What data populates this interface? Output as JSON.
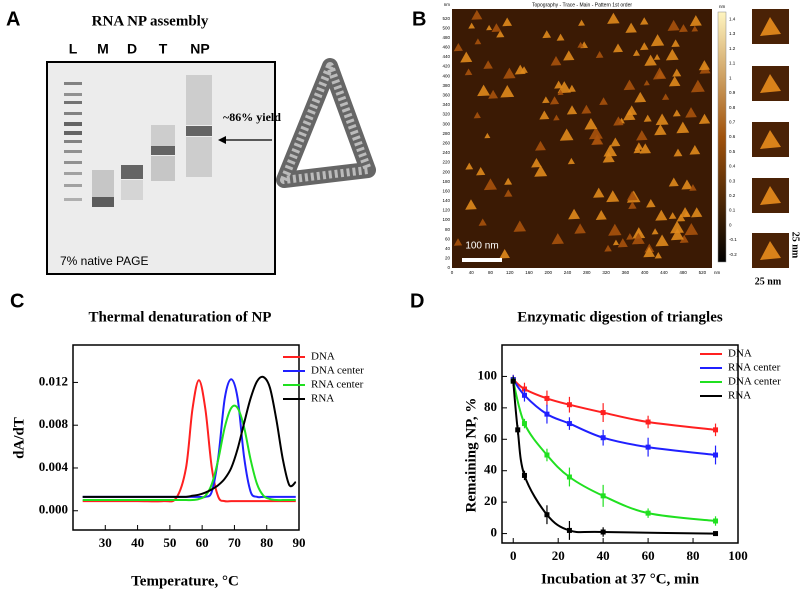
{
  "panel_a": {
    "label": "A",
    "title": "RNA NP assembly",
    "lanes": [
      "L",
      "M",
      "D",
      "T",
      "NP"
    ],
    "annotation": "~86% yield",
    "gel_note": "7% native PAGE"
  },
  "panel_b": {
    "label": "B",
    "header": "Topography - Trace - Main - Pattern 1st order",
    "x_unit": "nm",
    "y_unit": "nm",
    "colorbar_unit": "nm",
    "xlim": [
      0,
      540
    ],
    "ylim": [
      0,
      540
    ],
    "x_ticks": [
      0,
      40,
      80,
      120,
      160,
      200,
      240,
      280,
      320,
      360,
      400,
      440,
      480,
      520
    ],
    "y_ticks": [
      0,
      20,
      40,
      60,
      80,
      100,
      120,
      140,
      160,
      180,
      200,
      220,
      240,
      260,
      280,
      300,
      320,
      340,
      360,
      380,
      400,
      420,
      440,
      460,
      480,
      500,
      520
    ],
    "colorbar_lim": [
      -0.25,
      1.45
    ],
    "colorbar_ticks": [
      1.4,
      1.3,
      1.2,
      1.1,
      1,
      0.9,
      0.8,
      0.7,
      0.6,
      0.5,
      0.4,
      0.3,
      0.2,
      0.1,
      0,
      -0.1,
      -0.2
    ],
    "scale_bar": "100 nm",
    "inset_width": "25 nm",
    "inset_height": "25 nm"
  },
  "chart_data": [
    {
      "type": "line",
      "label": "C",
      "title": "Thermal denaturation of NP",
      "x_label": "Temperature, °C",
      "y_label": "dA/dT",
      "x": [
        23,
        30,
        40,
        48,
        52,
        55,
        57,
        59,
        61,
        63,
        65,
        67,
        69,
        71,
        73,
        75,
        77,
        79,
        81,
        83,
        85,
        87,
        89
      ],
      "xlim": [
        20,
        90
      ],
      "ylim": [
        -0.0018,
        0.0155
      ],
      "xticks": [
        30,
        40,
        50,
        60,
        70,
        80,
        90
      ],
      "yticks": [
        {
          "value": 0,
          "label": "0.000"
        },
        {
          "value": 0.004,
          "label": "0.004"
        },
        {
          "value": 0.008,
          "label": "0.008"
        },
        {
          "value": 0.012,
          "label": "0.012"
        }
      ],
      "legend": "upper right",
      "series": [
        {
          "name": "DNA",
          "color": "#ff2020",
          "values": [
            0.0009,
            0.0009,
            0.0009,
            0.0009,
            0.0012,
            0.004,
            0.0095,
            0.0122,
            0.0095,
            0.004,
            0.0013,
            0.0009,
            0.0009,
            0.0009,
            0.0009,
            0.0009,
            0.0009,
            0.0009,
            0.0009,
            0.0009,
            0.0009,
            0.0009,
            0.0009
          ]
        },
        {
          "name": "DNA center",
          "color": "#2020ff",
          "values": [
            0.0013,
            0.0013,
            0.0013,
            0.0013,
            0.0013,
            0.0013,
            0.0013,
            0.0013,
            0.0013,
            0.0018,
            0.005,
            0.0105,
            0.0123,
            0.0105,
            0.005,
            0.0018,
            0.0013,
            0.0013,
            0.0013,
            0.0013,
            0.0013,
            0.0013,
            0.0013
          ]
        },
        {
          "name": "RNA center",
          "color": "#20e020",
          "values": [
            0.001,
            0.001,
            0.001,
            0.001,
            0.001,
            0.001,
            0.001,
            0.0011,
            0.0014,
            0.0025,
            0.0048,
            0.0078,
            0.0096,
            0.0096,
            0.0078,
            0.0048,
            0.0025,
            0.0014,
            0.0011,
            0.001,
            0.001,
            0.001,
            0.001
          ]
        },
        {
          "name": "RNA",
          "color": "#000000",
          "values": [
            0.0013,
            0.0013,
            0.0013,
            0.0013,
            0.0013,
            0.0013,
            0.0014,
            0.0015,
            0.0017,
            0.002,
            0.0024,
            0.003,
            0.004,
            0.0058,
            0.0082,
            0.0105,
            0.0121,
            0.0125,
            0.0115,
            0.0085,
            0.0048,
            0.0024,
            0.0027
          ]
        }
      ]
    },
    {
      "type": "line",
      "label": "D",
      "title": "Enzymatic digestion of triangles",
      "x_label": "Incubation at 37 °C, min",
      "y_label": "Remaining NP, %",
      "xlim": [
        -5,
        100
      ],
      "ylim": [
        -6,
        120
      ],
      "xticks": [
        0,
        20,
        40,
        60,
        80,
        100
      ],
      "yticks": [
        0,
        20,
        40,
        60,
        80,
        100
      ],
      "legend": "upper right",
      "series": [
        {
          "name": "DNA",
          "color": "#ff2020",
          "x": [
            0,
            5,
            15,
            25,
            40,
            60,
            90
          ],
          "values": [
            98,
            92,
            86,
            82,
            77,
            71,
            66
          ],
          "errors": [
            3,
            4,
            5,
            5,
            6,
            4,
            4
          ]
        },
        {
          "name": "RNA center",
          "color": "#2020ff",
          "x": [
            0,
            5,
            15,
            25,
            40,
            60,
            90
          ],
          "values": [
            98,
            88,
            76,
            70,
            61,
            55,
            50
          ],
          "errors": [
            3,
            4,
            6,
            4,
            5,
            6,
            6
          ]
        },
        {
          "name": "DNA center",
          "color": "#20e020",
          "x": [
            0,
            5,
            15,
            25,
            40,
            60,
            90
          ],
          "values": [
            97,
            70,
            50,
            36,
            24,
            13,
            8
          ],
          "errors": [
            3,
            3,
            4,
            6,
            7,
            3,
            3
          ]
        },
        {
          "name": "RNA",
          "color": "#000000",
          "x": [
            0,
            2,
            5,
            15,
            25,
            40,
            90
          ],
          "values": [
            97,
            66,
            37,
            12,
            2,
            1,
            0
          ],
          "errors": [
            3,
            3,
            3,
            6,
            6,
            3,
            1
          ]
        }
      ]
    }
  ]
}
